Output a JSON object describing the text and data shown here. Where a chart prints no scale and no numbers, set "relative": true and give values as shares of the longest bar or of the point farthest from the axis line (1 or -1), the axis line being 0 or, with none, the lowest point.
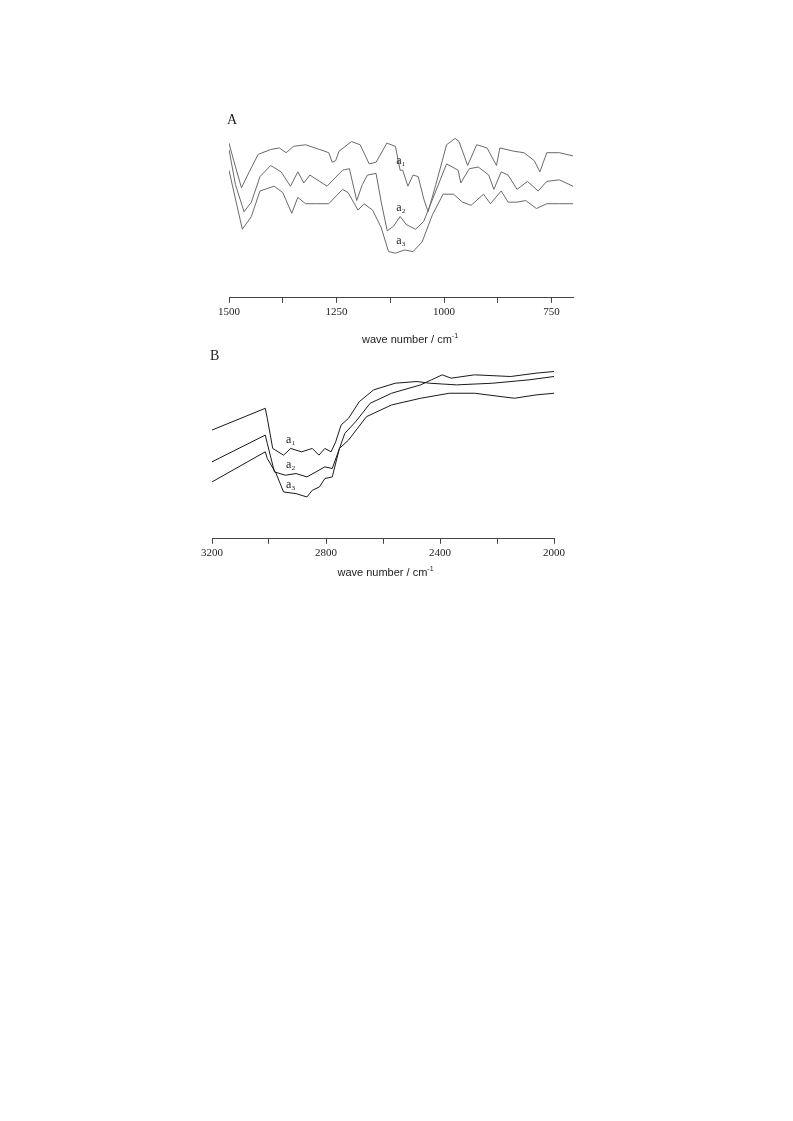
{
  "chart_data": [
    {
      "type": "line",
      "title": "A",
      "xlabel": "wave number / cm$^{-1}$",
      "relative": true,
      "xlim": [
        1500,
        700
      ],
      "xticks": [
        1500,
        {
          "value": 1375,
          "label": null
        },
        1250,
        {
          "value": 1125,
          "label": null
        },
        1000,
        {
          "value": 875,
          "label": null
        },
        750
      ],
      "grid": false,
      "legend": false,
      "marker": "none",
      "line_style": "solid",
      "series": [
        {
          "name": "a₁",
          "color": "#6a6a6a",
          "x": [
            1500,
            1489,
            1471,
            1453,
            1432,
            1403,
            1383,
            1367,
            1350,
            1322,
            1289,
            1268,
            1260,
            1252,
            1244,
            1215,
            1195,
            1174,
            1158,
            1133,
            1113,
            1102,
            1096,
            1084,
            1072,
            1060,
            1047,
            1037,
            1019,
            994,
            974,
            965,
            945,
            924,
            900,
            878,
            870,
            839,
            814,
            790,
            777,
            761,
            732,
            700
          ],
          "values": [
            0.97,
            0.86,
            0.69,
            0.79,
            0.9,
            0.93,
            0.94,
            0.91,
            0.95,
            0.96,
            0.93,
            0.91,
            0.85,
            0.86,
            0.92,
            0.98,
            0.96,
            0.84,
            0.85,
            0.97,
            0.95,
            0.8,
            0.8,
            0.7,
            0.77,
            0.76,
            0.62,
            0.54,
            0.71,
            0.96,
            1,
            0.98,
            0.83,
            0.96,
            0.94,
            0.83,
            0.94,
            0.92,
            0.91,
            0.86,
            0.79,
            0.91,
            0.91,
            0.89
          ]
        },
        {
          "name": "a₂",
          "color": "#6a6a6a",
          "x": [
            1500,
            1485,
            1465,
            1448,
            1428,
            1403,
            1379,
            1357,
            1340,
            1326,
            1312,
            1272,
            1236,
            1220,
            1203,
            1190,
            1178,
            1158,
            1146,
            1132,
            1117,
            1102,
            1088,
            1066,
            1047,
            1019,
            994,
            967,
            961,
            941,
            920,
            896,
            884,
            867,
            851,
            830,
            806,
            781,
            761,
            732,
            700
          ],
          "values": [
            0.93,
            0.71,
            0.54,
            0.6,
            0.76,
            0.83,
            0.79,
            0.7,
            0.79,
            0.72,
            0.77,
            0.7,
            0.8,
            0.81,
            0.61,
            0.71,
            0.77,
            0.78,
            0.6,
            0.42,
            0.45,
            0.51,
            0.46,
            0.43,
            0.48,
            0.67,
            0.84,
            0.8,
            0.72,
            0.81,
            0.82,
            0.77,
            0.68,
            0.79,
            0.77,
            0.68,
            0.73,
            0.67,
            0.73,
            0.74,
            0.7
          ]
        },
        {
          "name": "a₃",
          "color": "#6a6a6a",
          "x": [
            1500,
            1485,
            1469,
            1448,
            1428,
            1395,
            1375,
            1354,
            1340,
            1322,
            1297,
            1268,
            1236,
            1223,
            1200,
            1186,
            1166,
            1146,
            1129,
            1113,
            1092,
            1072,
            1051,
            1027,
            1002,
            978,
            957,
            937,
            908,
            892,
            867,
            851,
            830,
            810,
            785,
            761,
            732,
            700
          ],
          "values": [
            0.8,
            0.62,
            0.43,
            0.51,
            0.67,
            0.7,
            0.66,
            0.53,
            0.63,
            0.59,
            0.59,
            0.59,
            0.68,
            0.66,
            0.55,
            0.59,
            0.55,
            0.44,
            0.29,
            0.28,
            0.3,
            0.29,
            0.35,
            0.52,
            0.65,
            0.65,
            0.6,
            0.58,
            0.65,
            0.59,
            0.67,
            0.6,
            0.6,
            0.61,
            0.56,
            0.59,
            0.59,
            0.59
          ]
        }
      ]
    },
    {
      "type": "line",
      "title": "B",
      "xlabel": "wave number / cm$^{-1}$",
      "relative": true,
      "xlim": [
        3200,
        2000
      ],
      "xticks": [
        3200,
        {
          "value": 3000,
          "label": null
        },
        2800,
        {
          "value": 2600,
          "label": null
        },
        2400,
        {
          "value": 2200,
          "label": null
        },
        2000
      ],
      "grid": false,
      "legend": false,
      "marker": "none",
      "line_style": "solid",
      "series": [
        {
          "name": "a₁",
          "color": "#1a1a1a",
          "x": [
            3200,
            3013,
            3006,
            2987,
            2949,
            2924,
            2886,
            2848,
            2825,
            2804,
            2782,
            2766,
            2747,
            2721,
            2683,
            2633,
            2557,
            2481,
            2437,
            2342,
            2215,
            2088,
            2000
          ],
          "values": [
            0.65,
            0.78,
            0.72,
            0.54,
            0.5,
            0.54,
            0.52,
            0.54,
            0.5,
            0.54,
            0.52,
            0.58,
            0.68,
            0.72,
            0.82,
            0.89,
            0.93,
            0.94,
            0.93,
            0.92,
            0.93,
            0.95,
            0.97
          ]
        },
        {
          "name": "a₂",
          "color": "#1a1a1a",
          "x": [
            3200,
            3013,
            3006,
            2981,
            2943,
            2905,
            2867,
            2835,
            2804,
            2778,
            2759,
            2734,
            2696,
            2645,
            2570,
            2468,
            2430,
            2392,
            2361,
            2279,
            2152,
            2063,
            2000
          ],
          "values": [
            0.46,
            0.62,
            0.57,
            0.4,
            0.38,
            0.39,
            0.37,
            0.4,
            0.43,
            0.42,
            0.51,
            0.63,
            0.7,
            0.81,
            0.87,
            0.92,
            0.95,
            0.98,
            0.96,
            0.98,
            0.97,
            0.99,
            1
          ]
        },
        {
          "name": "a₃",
          "color": "#1a1a1a",
          "x": [
            3200,
            3013,
            3006,
            2975,
            2949,
            2905,
            2867,
            2848,
            2823,
            2804,
            2778,
            2753,
            2721,
            2658,
            2570,
            2468,
            2367,
            2279,
            2139,
            2063,
            2000
          ],
          "values": [
            0.34,
            0.52,
            0.48,
            0.39,
            0.28,
            0.27,
            0.25,
            0.29,
            0.31,
            0.36,
            0.37,
            0.54,
            0.59,
            0.73,
            0.8,
            0.84,
            0.87,
            0.87,
            0.84,
            0.86,
            0.87
          ]
        }
      ]
    }
  ]
}
